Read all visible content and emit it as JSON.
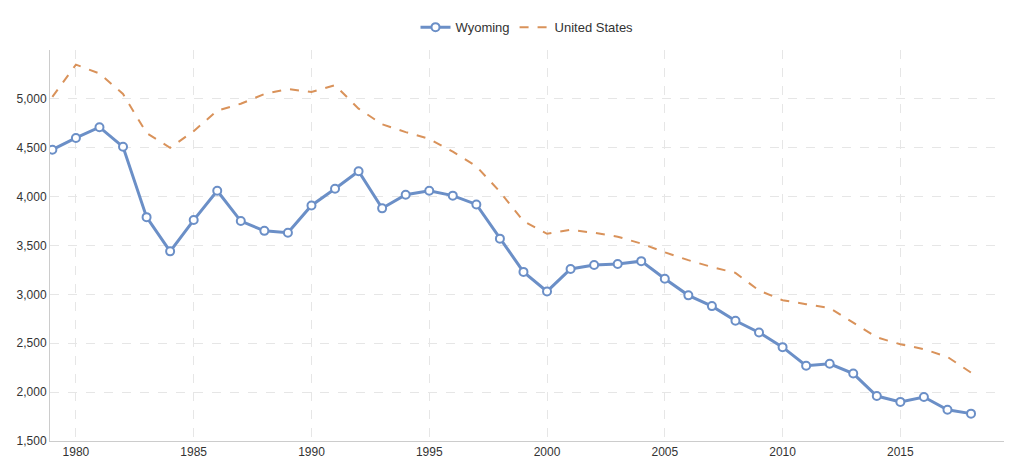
{
  "chart_data": {
    "type": "line",
    "x": [
      1979,
      1980,
      1981,
      1982,
      1983,
      1984,
      1985,
      1986,
      1987,
      1988,
      1989,
      1990,
      1991,
      1992,
      1993,
      1994,
      1995,
      1996,
      1997,
      1998,
      1999,
      2000,
      2001,
      2002,
      2003,
      2004,
      2005,
      2006,
      2007,
      2008,
      2009,
      2010,
      2011,
      2012,
      2013,
      2014,
      2015,
      2016,
      2017,
      2018
    ],
    "series": [
      {
        "name": "Wyoming",
        "color": "#6b8fc7",
        "marker": "circle",
        "line_style": "solid",
        "values": [
          4480,
          4600,
          4710,
          4510,
          3790,
          3440,
          3760,
          4060,
          3750,
          3650,
          3630,
          3910,
          4080,
          4260,
          3880,
          4020,
          4060,
          4010,
          3920,
          3570,
          3230,
          3030,
          3260,
          3300,
          3310,
          3340,
          3160,
          2990,
          2880,
          2730,
          2610,
          2460,
          2270,
          2290,
          2190,
          1960,
          1900,
          1950,
          1820,
          1780
        ]
      },
      {
        "name": "United States",
        "color": "#d9925a",
        "marker": "none",
        "line_style": "dashed",
        "values": [
          5020,
          5350,
          5260,
          5050,
          4650,
          4500,
          4670,
          4880,
          4950,
          5050,
          5100,
          5070,
          5140,
          4900,
          4740,
          4660,
          4590,
          4460,
          4310,
          4050,
          3750,
          3620,
          3660,
          3630,
          3590,
          3520,
          3430,
          3350,
          3280,
          3220,
          3040,
          2940,
          2900,
          2860,
          2710,
          2560,
          2490,
          2440,
          2360,
          2200
        ]
      }
    ],
    "xlim": [
      1978.9,
      2019.4
    ],
    "xticks": [
      1980,
      1985,
      1990,
      1995,
      2000,
      2005,
      2010,
      2015
    ],
    "ylim": [
      1500,
      5500
    ],
    "yticks": [
      {
        "value": 1500,
        "label": "1,500"
      },
      {
        "value": 2000,
        "label": "2,000"
      },
      {
        "value": 2500,
        "label": "2,500"
      },
      {
        "value": 3000,
        "label": "3,000"
      },
      {
        "value": 3500,
        "label": "3,500"
      },
      {
        "value": 4000,
        "label": "4,000"
      },
      {
        "value": 4500,
        "label": "4,500"
      },
      {
        "value": 5000,
        "label": "5,000"
      }
    ],
    "grid": true,
    "legend": "top"
  }
}
